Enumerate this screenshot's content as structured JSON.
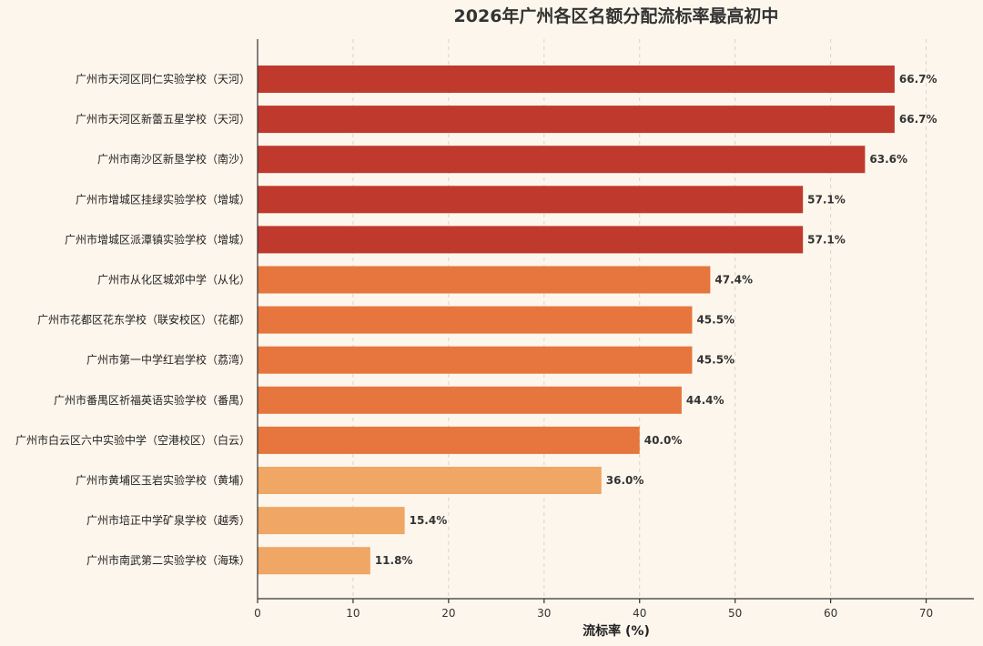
{
  "chart_data": {
    "type": "bar",
    "orientation": "horizontal",
    "title": "2026年广州各区名额分配流标率最高初中",
    "xlabel": "流标率 (%)",
    "ylabel": "",
    "xlim": [
      0,
      75
    ],
    "xticks": [
      0,
      10,
      20,
      30,
      40,
      50,
      60,
      70
    ],
    "grid": "vertical-dashed",
    "categories": [
      "广州市天河区同仁实验学校（天河）",
      "广州市天河区新蕾五星学校（天河）",
      "广州市南沙区新垦学校（南沙）",
      "广州市增城区挂绿实验学校（增城）",
      "广州市增城区派潭镇实验学校（增城）",
      "广州市从化区城郊中学（从化）",
      "广州市花都区花东学校（联安校区）（花都）",
      "广州市第一中学红岩学校（荔湾）",
      "广州市番禺区祈福英语实验学校（番禺）",
      "广州市白云区六中实验中学（空港校区）（白云）",
      "广州市黄埔区玉岩实验学校（黄埔）",
      "广州市培正中学矿泉学校（越秀）",
      "广州市南武第二实验学校（海珠）"
    ],
    "values": [
      66.7,
      66.7,
      63.6,
      57.1,
      57.1,
      47.4,
      45.5,
      45.5,
      44.4,
      40.0,
      36.0,
      15.4,
      11.8
    ],
    "value_labels": [
      "66.7%",
      "66.7%",
      "63.6%",
      "57.1%",
      "57.1%",
      "47.4%",
      "45.5%",
      "45.5%",
      "44.4%",
      "40.0%",
      "36.0%",
      "15.4%",
      "11.8%"
    ],
    "colors": [
      "#bf3a2d",
      "#bf3a2d",
      "#bf3a2d",
      "#bf3a2d",
      "#bf3a2d",
      "#e6763e",
      "#e6763e",
      "#e6763e",
      "#e6763e",
      "#e6763e",
      "#f0a664",
      "#f0a664",
      "#f0a664"
    ],
    "background": "#fdf6ec"
  }
}
